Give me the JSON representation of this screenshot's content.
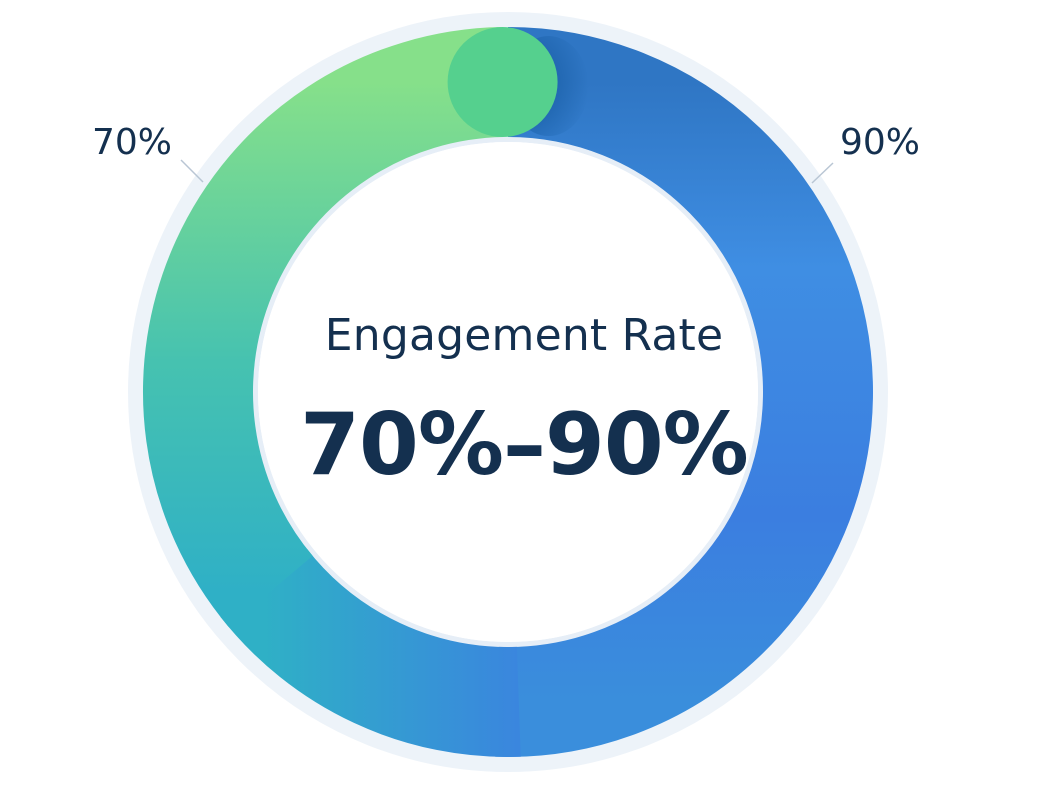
{
  "chart_data": {
    "type": "pie",
    "title": "Engagement Rate",
    "value_text": "70%–90%",
    "range": {
      "low": 70,
      "high": 90,
      "unit": "%"
    },
    "segments": [
      {
        "label": "70%",
        "value": 70,
        "color_start": "#86e08a",
        "color_end": "#2fb0c6"
      },
      {
        "label": "90%",
        "value": 90,
        "color_start": "#2f7fd0",
        "color_end": "#3c86e0"
      }
    ],
    "legend": "none",
    "grid": false
  },
  "colors": {
    "text": "#14304f",
    "ring_outer": "#e9f1f8",
    "ring_inner_edge": "#dfe9f4",
    "green": "#7fdc86",
    "teal": "#2eb3c4",
    "blue": "#3d86e2",
    "deep_blue": "#0f5fa5"
  }
}
